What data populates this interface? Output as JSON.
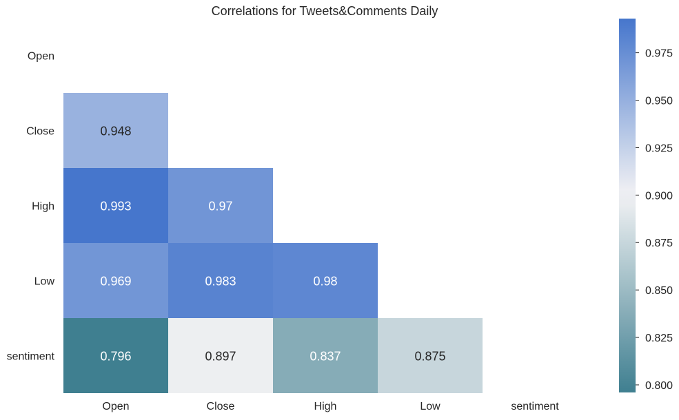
{
  "chart_data": {
    "type": "heatmap",
    "title": "Correlations for Tweets&Comments Daily",
    "xlabel": "",
    "ylabel": "",
    "row_labels": [
      "Open",
      "Close",
      "High",
      "Low",
      "sentiment"
    ],
    "col_labels": [
      "Open",
      "Close",
      "High",
      "Low",
      "sentiment"
    ],
    "mask": "upper-triangle-including-diagonal",
    "cells": [
      {
        "row": "Close",
        "col": "Open",
        "value": 0.948,
        "label": "0.948"
      },
      {
        "row": "High",
        "col": "Open",
        "value": 0.993,
        "label": "0.993"
      },
      {
        "row": "High",
        "col": "Close",
        "value": 0.97,
        "label": "0.97"
      },
      {
        "row": "Low",
        "col": "Open",
        "value": 0.969,
        "label": "0.969"
      },
      {
        "row": "Low",
        "col": "Close",
        "value": 0.983,
        "label": "0.983"
      },
      {
        "row": "Low",
        "col": "High",
        "value": 0.98,
        "label": "0.98"
      },
      {
        "row": "sentiment",
        "col": "Open",
        "value": 0.796,
        "label": "0.796"
      },
      {
        "row": "sentiment",
        "col": "Close",
        "value": 0.897,
        "label": "0.897"
      },
      {
        "row": "sentiment",
        "col": "High",
        "value": 0.837,
        "label": "0.837"
      },
      {
        "row": "sentiment",
        "col": "Low",
        "value": 0.875,
        "label": "0.875"
      }
    ],
    "colorbar": {
      "vmin": 0.796,
      "vmax": 0.993,
      "center": 0.9,
      "ticks": [
        "0.800",
        "0.825",
        "0.850",
        "0.875",
        "0.900",
        "0.925",
        "0.950",
        "0.975"
      ],
      "colors": {
        "low": "#3f7f90",
        "mid": "#f2f2f4",
        "high": "#4676cc"
      }
    },
    "grid": false,
    "legend": "colorbar-right"
  }
}
